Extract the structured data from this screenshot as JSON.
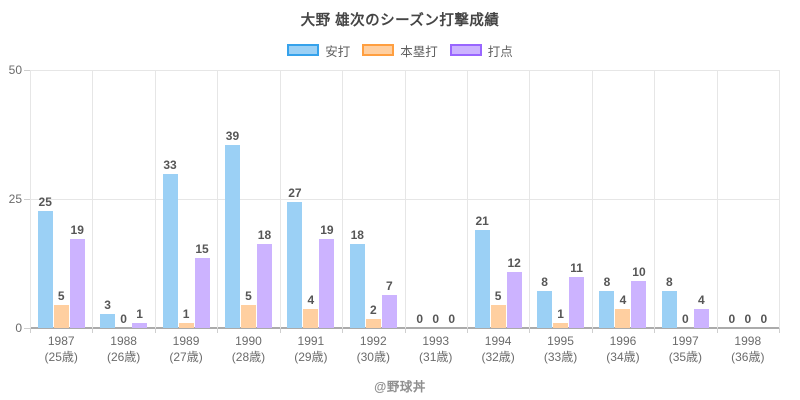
{
  "watermark": "@野球丼",
  "chart_data": {
    "type": "bar",
    "title": "大野 雄次のシーズン打撃成績",
    "xlabel": "",
    "ylabel": "",
    "ylim": [
      0,
      50
    ],
    "yticks": [
      0,
      25,
      50
    ],
    "grid": true,
    "legend_position": "top",
    "categories": [
      "1987",
      "1988",
      "1989",
      "1990",
      "1991",
      "1992",
      "1993",
      "1994",
      "1995",
      "1996",
      "1997",
      "1998"
    ],
    "age_labels": [
      "(25歳)",
      "(26歳)",
      "(27歳)",
      "(28歳)",
      "(29歳)",
      "(30歳)",
      "(31歳)",
      "(32歳)",
      "(33歳)",
      "(34歳)",
      "(35歳)",
      "(36歳)"
    ],
    "series": [
      {
        "name": "安打",
        "fill": "#9BD0F5",
        "border": "#36A2EB",
        "values": [
          25,
          3,
          33,
          39,
          27,
          18,
          0,
          21,
          8,
          8,
          8,
          0
        ]
      },
      {
        "name": "本塁打",
        "fill": "#FFCFA0",
        "border": "#FF9F40",
        "values": [
          5,
          0,
          1,
          5,
          4,
          2,
          0,
          5,
          1,
          4,
          0,
          0
        ]
      },
      {
        "name": "打点",
        "fill": "#CCB3FF",
        "border": "#9966FF",
        "values": [
          19,
          1,
          15,
          18,
          19,
          7,
          0,
          12,
          11,
          10,
          4,
          0
        ]
      }
    ]
  }
}
